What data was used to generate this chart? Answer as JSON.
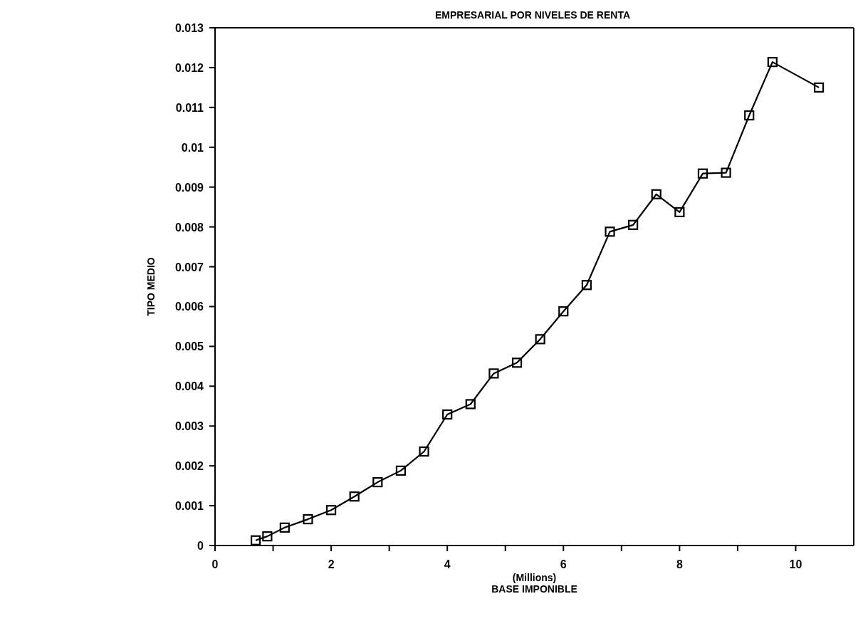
{
  "chart_data": {
    "type": "line",
    "title": "EMPRESARIAL POR NIVELES DE RENTA",
    "xlabel": "(Millions)\nBASE IMPONIBLE",
    "ylabel": "TIPO MEDIO",
    "x": [
      0.7,
      0.9,
      1.2,
      1.6,
      2.0,
      2.4,
      2.8,
      3.2,
      3.6,
      4.0,
      4.4,
      4.8,
      5.2,
      5.6,
      6.0,
      6.4,
      6.8,
      7.2,
      7.6,
      8.0,
      8.4,
      8.8,
      9.2,
      9.6,
      10.4
    ],
    "series": [
      {
        "color": "#000000",
        "values": [
          0.00013,
          0.00023,
          0.00045,
          0.00066,
          0.00089,
          0.00123,
          0.00159,
          0.00188,
          0.00236,
          0.00329,
          0.00355,
          0.00432,
          0.00459,
          0.00518,
          0.00588,
          0.00654,
          0.00788,
          0.00805,
          0.00882,
          0.00837,
          0.00934,
          0.00936,
          0.0108,
          0.01214,
          0.0115
        ]
      }
    ],
    "xlim": [
      0,
      11
    ],
    "xticks": [
      0,
      {
        "value": 1,
        "label": null
      },
      2,
      {
        "value": 3,
        "label": null
      },
      4,
      {
        "value": 5,
        "label": null
      },
      6,
      {
        "value": 7,
        "label": null
      },
      8,
      {
        "value": 9,
        "label": null
      },
      10
    ],
    "ylim": [
      0,
      0.013
    ],
    "yticks": [
      0,
      0.001,
      0.002,
      0.003,
      0.004,
      0.005,
      0.006,
      0.007,
      0.008,
      0.009,
      0.01,
      0.011,
      0.012,
      0.013
    ],
    "marker": "square",
    "line_style": "solid",
    "grid": false,
    "legend": false
  }
}
